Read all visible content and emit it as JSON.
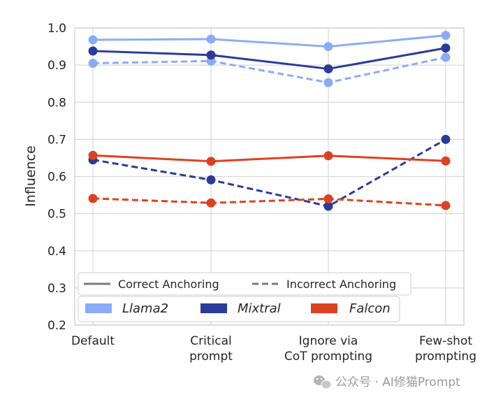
{
  "chart_data": {
    "type": "line",
    "categories": [
      "Default",
      "Critical\nprompt",
      "Ignore via\nCoT prompting",
      "Few-shot\nprompting"
    ],
    "ylabel": "Influence",
    "xlabel": "",
    "ylim": [
      0.2,
      1.0
    ],
    "yticks": [
      "0.2",
      "0.3",
      "0.4",
      "0.5",
      "0.6",
      "0.7",
      "0.8",
      "0.9",
      "1.0"
    ],
    "grid": true,
    "series": [
      {
        "name": "Llama2",
        "style": "Correct Anchoring",
        "color": "#8AACF8",
        "values": [
          0.968,
          0.97,
          0.95,
          0.98
        ]
      },
      {
        "name": "Llama2",
        "style": "Incorrect Anchoring",
        "color": "#8AACF8",
        "values": [
          0.905,
          0.911,
          0.853,
          0.921
        ]
      },
      {
        "name": "Mixtral",
        "style": "Correct Anchoring",
        "color": "#2B3B9A",
        "values": [
          0.938,
          0.927,
          0.89,
          0.946
        ]
      },
      {
        "name": "Mixtral",
        "style": "Incorrect Anchoring",
        "color": "#2B3B9A",
        "values": [
          0.645,
          0.591,
          0.52,
          0.7
        ]
      },
      {
        "name": "Falcon",
        "style": "Correct Anchoring",
        "color": "#DC4221",
        "values": [
          0.657,
          0.641,
          0.656,
          0.642
        ]
      },
      {
        "name": "Falcon",
        "style": "Incorrect Anchoring",
        "color": "#DC4221",
        "values": [
          0.541,
          0.529,
          0.54,
          0.522
        ]
      }
    ],
    "legend_style": {
      "placement": "bottom-left",
      "entries": [
        {
          "label": "Correct Anchoring",
          "dash": "solid"
        },
        {
          "label": "Incorrect Anchoring",
          "dash": "dashed"
        }
      ]
    },
    "legend_models": {
      "placement": "bottom-left",
      "entries": [
        {
          "label": "Llama2",
          "color": "#8AACF8"
        },
        {
          "label": "Mixtral",
          "color": "#2B3B9A"
        },
        {
          "label": "Falcon",
          "color": "#DC4221"
        }
      ]
    }
  },
  "watermark": {
    "text": "公众号 · AI修猫Prompt",
    "icon": "wechat-icon"
  }
}
